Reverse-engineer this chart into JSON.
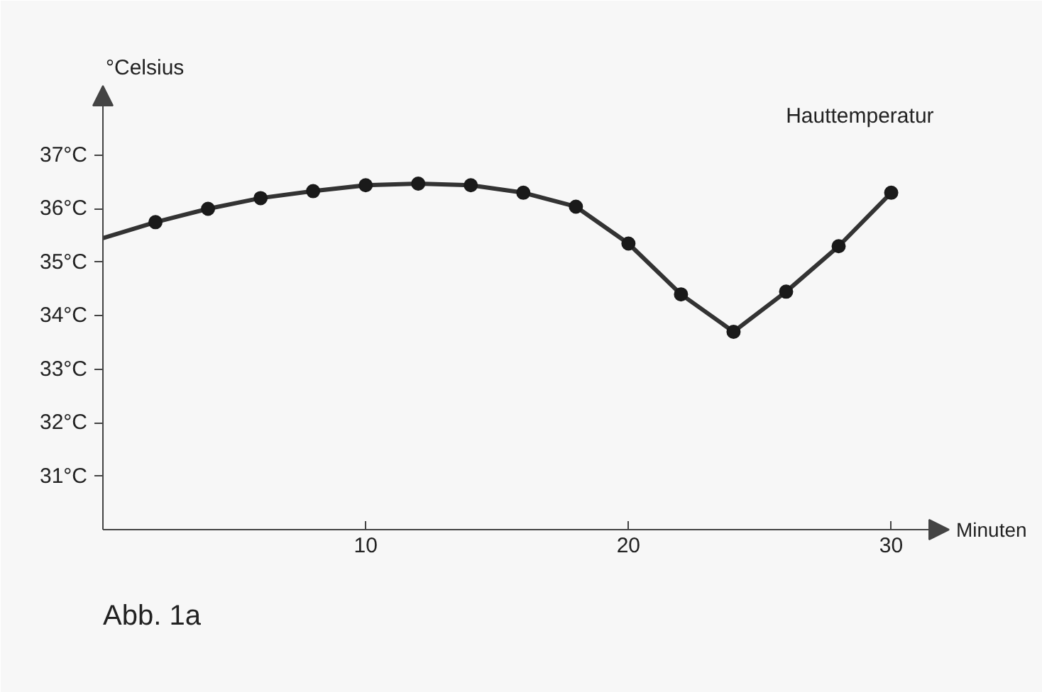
{
  "chart_data": {
    "type": "line",
    "xlabel": "Minuten",
    "ylabel": "°Celsius",
    "x": [
      0,
      2,
      4,
      6,
      8,
      10,
      12,
      14,
      16,
      18,
      20,
      22,
      24,
      26,
      28,
      30
    ],
    "series": [
      {
        "name": "Hauttemperatur",
        "color": "#333333",
        "marker": "none",
        "values": [
          35.45,
          35.75,
          36.0,
          36.2,
          36.33,
          36.44,
          36.47,
          36.44,
          36.3,
          36.04,
          35.35,
          34.4,
          33.7,
          34.45,
          35.3,
          36.3
        ]
      },
      {
        "color": "#1a1a1a",
        "type": "scatter",
        "marker": "circle",
        "x": [
          2,
          4,
          6,
          8,
          10,
          12,
          14,
          16,
          18,
          20,
          22,
          24,
          26,
          28,
          30
        ],
        "values": [
          35.75,
          36.0,
          36.2,
          36.33,
          36.44,
          36.47,
          36.44,
          36.3,
          36.04,
          35.35,
          34.4,
          33.7,
          34.45,
          35.3,
          36.3
        ]
      }
    ],
    "xlim": [
      0,
      32.2
    ],
    "ylim": [
      30,
      38.3
    ],
    "xticks": [
      10,
      20,
      30
    ],
    "yticks": [
      {
        "value": 31,
        "label": "31°C"
      },
      {
        "value": 32,
        "label": "32°C"
      },
      {
        "value": 33,
        "label": "33°C"
      },
      {
        "value": 34,
        "label": "34°C"
      },
      {
        "value": 35,
        "label": "35°C"
      },
      {
        "value": 36,
        "label": "36°C"
      },
      {
        "value": 37,
        "label": "37°C"
      }
    ],
    "grid": false,
    "annotations": [
      "Abb. 1a"
    ]
  }
}
